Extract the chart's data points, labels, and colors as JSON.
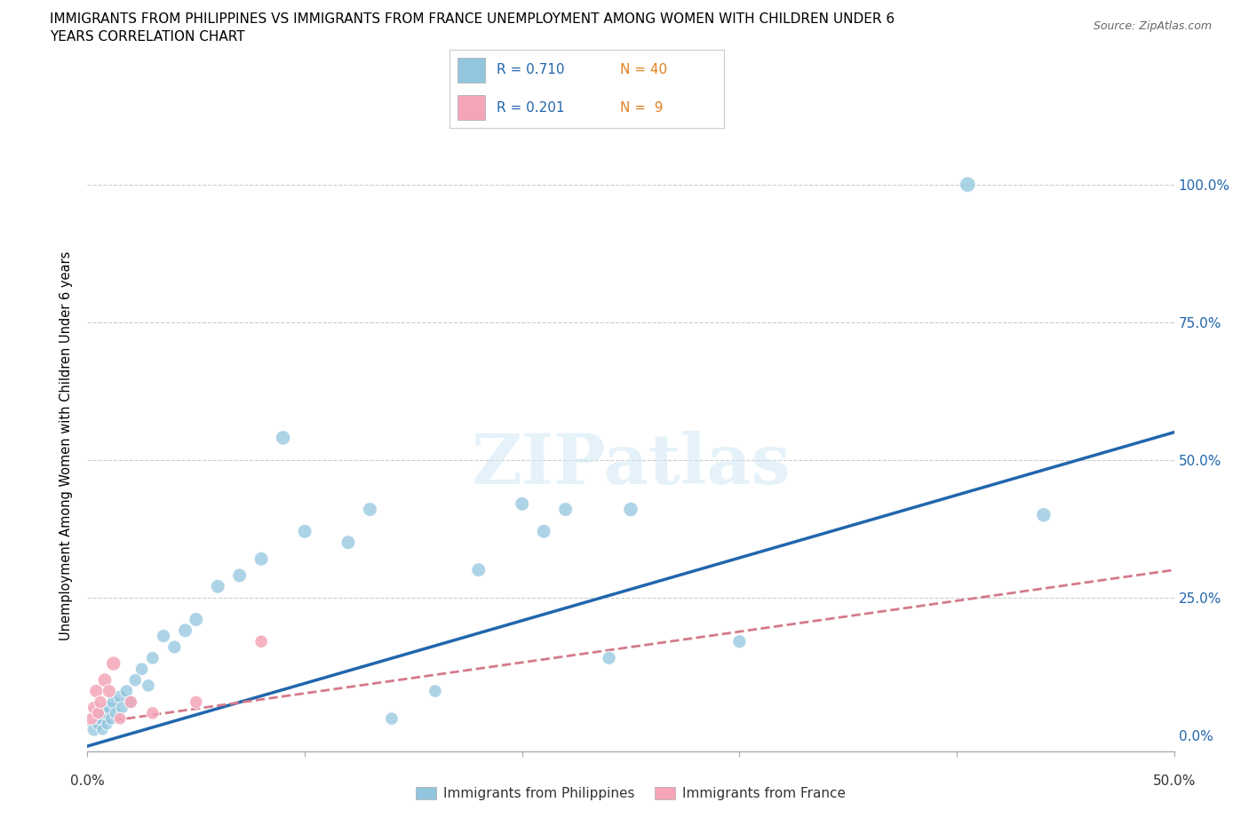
{
  "title_line1": "IMMIGRANTS FROM PHILIPPINES VS IMMIGRANTS FROM FRANCE UNEMPLOYMENT AMONG WOMEN WITH CHILDREN UNDER 6",
  "title_line2": "YEARS CORRELATION CHART",
  "source": "Source: ZipAtlas.com",
  "ylabel": "Unemployment Among Women with Children Under 6 years",
  "ytick_values": [
    0,
    25,
    50,
    75,
    100
  ],
  "xlim": [
    0,
    50
  ],
  "ylim": [
    -3,
    108
  ],
  "watermark": "ZIPatlas",
  "philippines_color": "#92c5de",
  "france_color": "#f4a6b8",
  "trendline_philippines_color": "#2166ac",
  "trendline_france_color": "#d47a8a",
  "phil_trendline_x0": 0,
  "phil_trendline_y0": -2,
  "phil_trendline_x1": 50,
  "phil_trendline_y1": 55,
  "france_trendline_x0": 0,
  "france_trendline_y0": 2,
  "france_trendline_x1": 50,
  "france_trendline_y1": 30,
  "philippines_x": [
    0.3,
    0.5,
    0.6,
    0.7,
    0.8,
    0.9,
    1.0,
    1.1,
    1.2,
    1.3,
    1.5,
    1.6,
    1.8,
    2.0,
    2.2,
    2.5,
    2.8,
    3.0,
    3.5,
    4.0,
    4.5,
    5.0,
    6.0,
    7.0,
    8.0,
    9.0,
    10.0,
    12.0,
    13.0,
    14.0,
    16.0,
    18.0,
    20.0,
    21.0,
    22.0,
    24.0,
    25.0,
    30.0,
    40.5,
    44.0
  ],
  "philippines_y": [
    1,
    2,
    3,
    1,
    4,
    2,
    5,
    3,
    6,
    4,
    7,
    5,
    8,
    6,
    10,
    12,
    9,
    14,
    18,
    16,
    19,
    21,
    27,
    29,
    32,
    54,
    37,
    35,
    41,
    3,
    8,
    30,
    42,
    37,
    41,
    14,
    41,
    17,
    100,
    40
  ],
  "france_x": [
    0.2,
    0.3,
    0.4,
    0.5,
    0.6,
    0.8,
    1.0,
    1.2,
    1.5,
    2.0,
    3.0,
    5.0,
    8.0
  ],
  "france_y": [
    3,
    5,
    8,
    4,
    6,
    10,
    8,
    13,
    3,
    6,
    4,
    6,
    17
  ],
  "philippines_sizes": [
    120,
    100,
    110,
    90,
    100,
    90,
    110,
    100,
    120,
    100,
    110,
    100,
    110,
    100,
    110,
    110,
    110,
    110,
    120,
    120,
    130,
    130,
    130,
    130,
    130,
    140,
    130,
    130,
    130,
    110,
    110,
    130,
    130,
    130,
    130,
    120,
    140,
    120,
    160,
    140
  ],
  "france_sizes": [
    100,
    110,
    120,
    100,
    110,
    130,
    120,
    140,
    100,
    110,
    110,
    110,
    110
  ]
}
